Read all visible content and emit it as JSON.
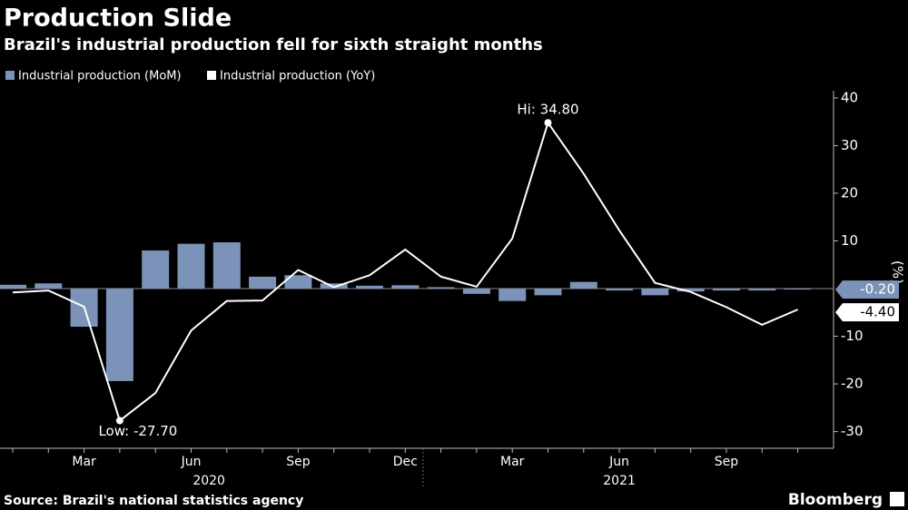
{
  "chart_data": {
    "type": "bar_line",
    "title": "Production Slide",
    "subtitle": "Brazil's industrial production fell for sixth straight months",
    "categories": [
      null,
      null,
      "Mar",
      null,
      null,
      "Jun",
      null,
      null,
      "Sep",
      null,
      null,
      "Dec",
      null,
      null,
      "Mar",
      null,
      null,
      "Jun",
      null,
      null,
      "Sep",
      null,
      null
    ],
    "years": [
      {
        "label": "2020",
        "from": 0,
        "to": 11
      },
      {
        "label": "2021",
        "from": 12,
        "to": 22
      }
    ],
    "series": [
      {
        "name": "Industrial production (MoM)",
        "type": "bar",
        "color": "#7b93b8",
        "values": [
          0.8,
          1.1,
          -8.0,
          -19.4,
          8.0,
          9.4,
          9.7,
          2.5,
          2.8,
          1.1,
          0.6,
          0.7,
          0.3,
          -1.1,
          -2.6,
          -1.4,
          1.4,
          -0.4,
          -1.4,
          -0.6,
          -0.4,
          -0.4,
          -0.2
        ],
        "last_label": "-0.20"
      },
      {
        "name": "Industrial production (YoY)",
        "type": "line",
        "color": "#ffffff",
        "values": [
          -0.8,
          -0.4,
          -3.8,
          -27.7,
          -21.9,
          -8.8,
          -2.6,
          -2.5,
          3.9,
          0.3,
          2.8,
          8.2,
          2.5,
          0.4,
          10.5,
          34.8,
          24.1,
          12.2,
          1.2,
          -0.7,
          -3.9,
          -7.6,
          -4.4
        ],
        "last_label": "-4.40"
      }
    ],
    "annotations": [
      {
        "text": "Hi: 34.80",
        "series": 1,
        "index": 15
      },
      {
        "text": "Low: -27.70",
        "series": 1,
        "index": 3
      }
    ],
    "y_label": "(%)",
    "ylim": [
      -33.5,
      41.5
    ],
    "yticks": [
      40,
      30,
      20,
      10,
      -10,
      -20,
      -30
    ],
    "source": "Source: Brazil's national statistics agency",
    "brand": "Bloomberg"
  }
}
